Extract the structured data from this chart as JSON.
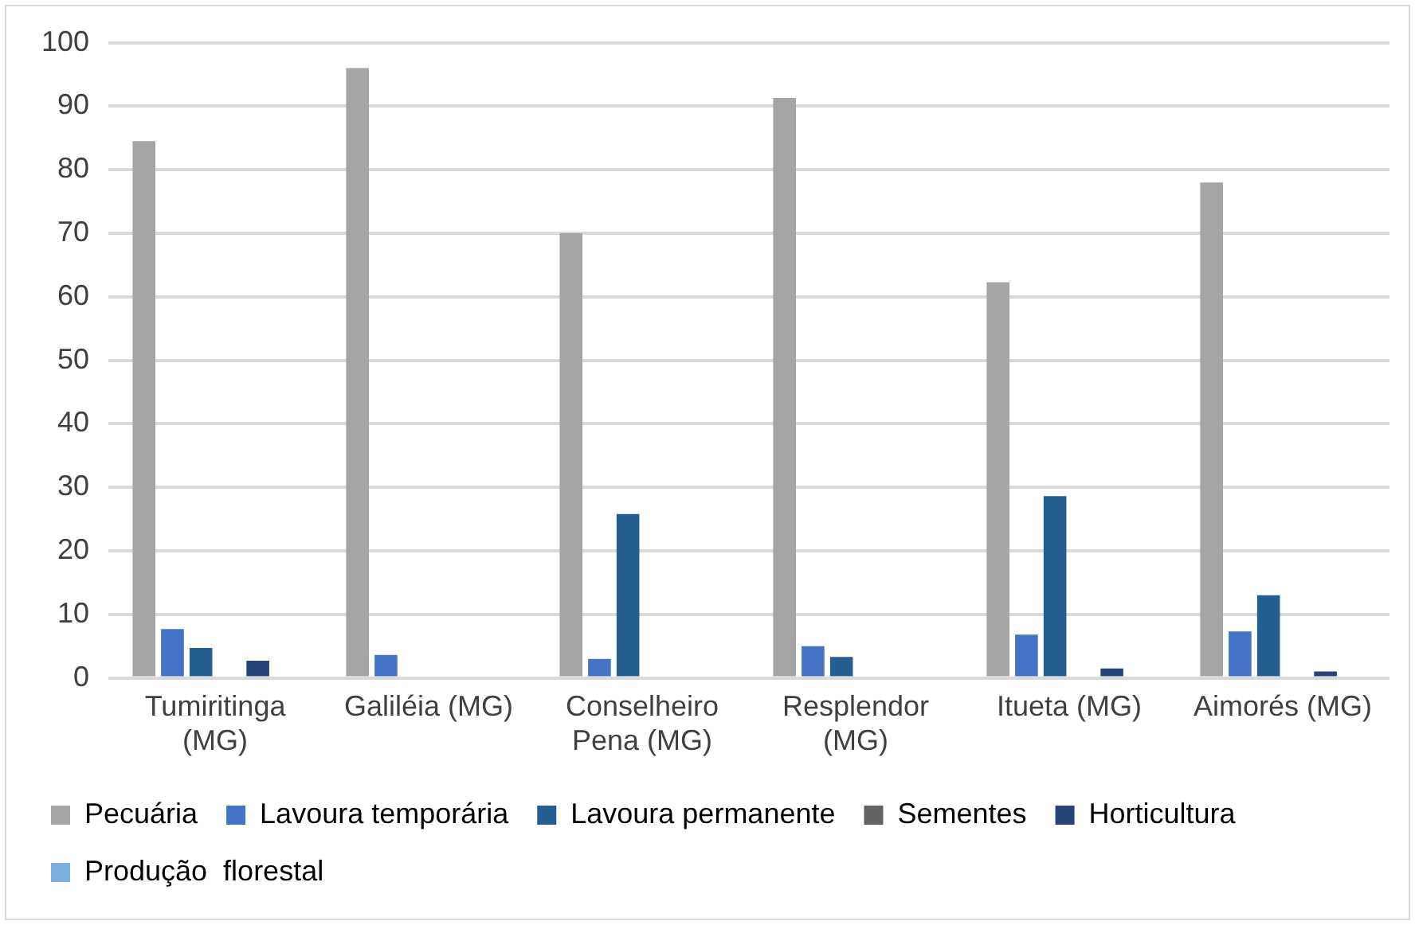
{
  "chart_data": {
    "type": "bar",
    "categories": [
      "Tumiritinga (MG)",
      "Galiléia (MG)",
      "Conselheiro Pena (MG)",
      "Resplendor (MG)",
      "Itueta (MG)",
      "Aimorés (MG)"
    ],
    "series": [
      {
        "name": "Pecuária",
        "color": "#a5a5a5",
        "values": [
          84.5,
          96,
          70,
          91.3,
          62.3,
          78
        ]
      },
      {
        "name": "Lavoura temporária",
        "color": "#4472c4",
        "values": [
          7.7,
          3.6,
          3,
          5,
          6.8,
          7.3
        ]
      },
      {
        "name": "Lavoura permanente",
        "color": "#255e91",
        "values": [
          4.7,
          null,
          25.8,
          3.3,
          28.6,
          13
        ]
      },
      {
        "name": "Sementes",
        "color": "#636363",
        "values": [
          0,
          0,
          0,
          0,
          0,
          0
        ]
      },
      {
        "name": "Horticultura",
        "color": "#264478",
        "values": [
          2.7,
          0,
          null,
          null,
          1.5,
          1
        ]
      },
      {
        "name": "Produção  florestal",
        "color": "#7cafdd",
        "values": [
          0,
          0,
          0,
          0,
          0,
          0
        ]
      }
    ],
    "ylim": [
      0,
      100
    ],
    "yticks": [
      0,
      10,
      20,
      30,
      40,
      50,
      60,
      70,
      80,
      90,
      100
    ],
    "grid": "y",
    "legend": "bottom"
  }
}
